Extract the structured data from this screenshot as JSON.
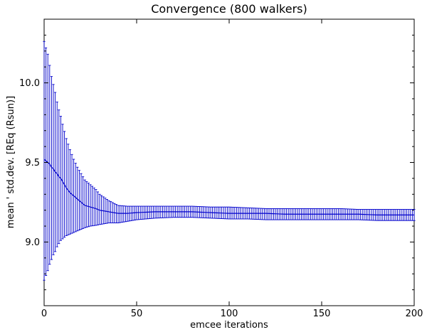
{
  "chart_data": {
    "type": "line",
    "title": "Convergence (800 walkers)",
    "xlabel": "emcee iterations",
    "ylabel": "mean ' std.dev. [REq (Rsun)]",
    "xlim": [
      0,
      200
    ],
    "ylim": [
      8.6,
      10.4
    ],
    "x_ticks": [
      0,
      50,
      100,
      150,
      200
    ],
    "x_tick_labels": [
      "0",
      "50",
      "100",
      "150",
      "200"
    ],
    "y_ticks": [
      9.0,
      9.5,
      10.0
    ],
    "y_tick_labels": [
      "9.0",
      "9.5",
      "10.0"
    ],
    "grid": false,
    "legend": "none",
    "color": "#0000cc",
    "series": [
      {
        "error_bars": true,
        "x": [
          0,
          1,
          2,
          3,
          4,
          5,
          6,
          7,
          8,
          9,
          10,
          12,
          14,
          16,
          18,
          20,
          22,
          25,
          28,
          30,
          35,
          40,
          45,
          50,
          60,
          70,
          80,
          90,
          100,
          110,
          120,
          130,
          140,
          150,
          160,
          170,
          180,
          190,
          200
        ],
        "mean": [
          9.52,
          9.51,
          9.5,
          9.49,
          9.47,
          9.46,
          9.44,
          9.43,
          9.41,
          9.4,
          9.38,
          9.34,
          9.31,
          9.29,
          9.27,
          9.25,
          9.23,
          9.22,
          9.21,
          9.2,
          9.19,
          9.18,
          9.18,
          9.185,
          9.19,
          9.19,
          9.19,
          9.185,
          9.18,
          9.18,
          9.18,
          9.175,
          9.175,
          9.175,
          9.175,
          9.175,
          9.17,
          9.17,
          9.17
        ],
        "upper": [
          10.26,
          10.22,
          10.18,
          10.11,
          10.04,
          9.99,
          9.94,
          9.88,
          9.83,
          9.79,
          9.74,
          9.65,
          9.58,
          9.52,
          9.47,
          9.43,
          9.39,
          9.36,
          9.33,
          9.3,
          9.26,
          9.23,
          9.225,
          9.225,
          9.225,
          9.225,
          9.225,
          9.22,
          9.22,
          9.215,
          9.21,
          9.21,
          9.21,
          9.21,
          9.21,
          9.205,
          9.205,
          9.205,
          9.205
        ],
        "lower": [
          8.76,
          8.79,
          8.82,
          8.86,
          8.89,
          8.92,
          8.94,
          8.97,
          8.99,
          9.01,
          9.02,
          9.04,
          9.05,
          9.06,
          9.07,
          9.08,
          9.09,
          9.1,
          9.105,
          9.11,
          9.12,
          9.12,
          9.13,
          9.14,
          9.15,
          9.155,
          9.155,
          9.15,
          9.145,
          9.145,
          9.14,
          9.14,
          9.14,
          9.14,
          9.14,
          9.14,
          9.135,
          9.135,
          9.135
        ]
      }
    ]
  }
}
